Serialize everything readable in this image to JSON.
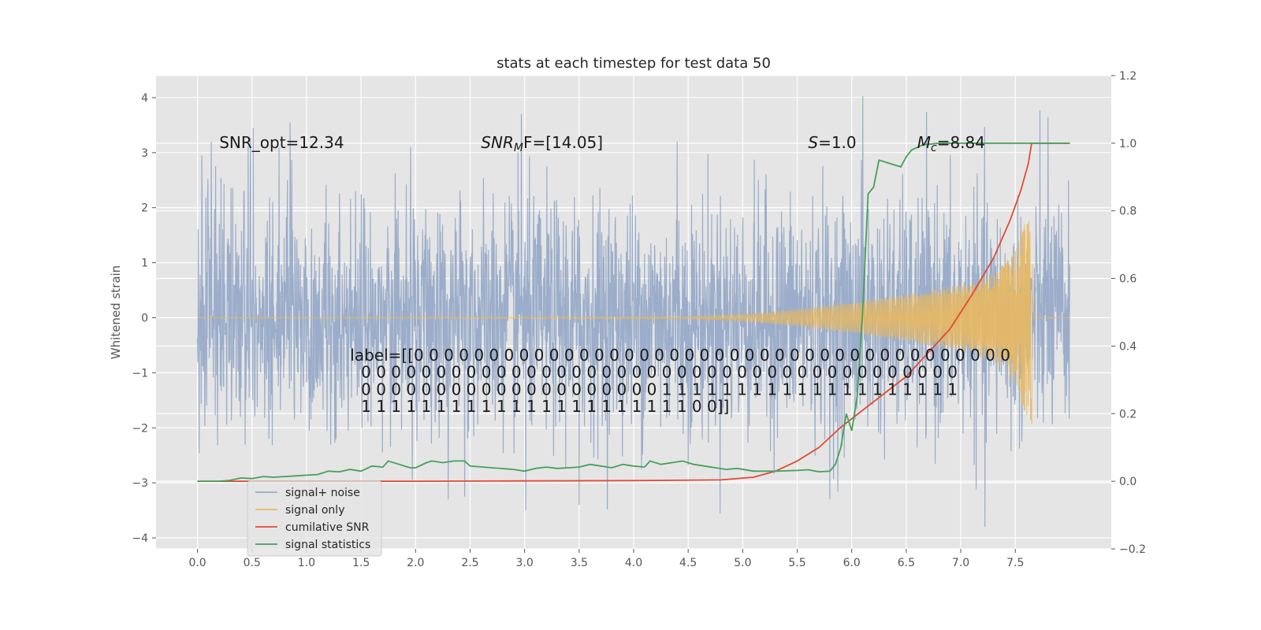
{
  "chart_data": {
    "type": "line",
    "title": "stats at each timestep for test data 50",
    "xlabel": "",
    "ylabel": "Whitened strain",
    "xlim": [
      -0.38,
      8.38
    ],
    "ylim": [
      -4.2,
      4.4
    ],
    "y2lim": [
      -0.2,
      1.2
    ],
    "xticks": [
      "0.0",
      "0.5",
      "1.0",
      "1.5",
      "2.0",
      "2.5",
      "3.0",
      "3.5",
      "4.0",
      "4.5",
      "5.0",
      "5.5",
      "6.0",
      "6.5",
      "7.0",
      "7.5"
    ],
    "yticks": [
      "4",
      "3",
      "2",
      "1",
      "0",
      "−1",
      "−2",
      "−3",
      "−4"
    ],
    "y2ticks": [
      "1.2",
      "1.0",
      "0.8",
      "0.6",
      "0.4",
      "0.2",
      "0.0",
      "−0.2"
    ],
    "grid": true,
    "legend_position": "lower-left",
    "annotations": {
      "snr_opt": "SNR_opt=12.34",
      "snr_mf_main": "SNR",
      "snr_mf_sub": "M",
      "snr_mf_rest": "F=[14.05]",
      "s_italic": "S",
      "s_rest": "=1.0",
      "mc_main": "M",
      "mc_sub": "c",
      "mc_rest": "=8.84",
      "label_lines": [
        "label=[[0 0 0 0 0 0 0 0 0 0 0 0 0 0 0 0 0 0 0 0 0 0 0 0 0 0 0 0 0 0 0 0 0 0 0 0 0 0 0 0",
        "0 0 0 0 0 0 0 0 0 0 0 0 0 0 0 0 0 0 0 0 0 0 0 0 0 0 0 0 0 0 0 0 0 0 0 0 0 0 0 0",
        "0 0 0 0 0 0 0 0 0 0 0 0 0 0 0 0 0 0 0 0 1 1 1 1 1 1 1 1 1 1 1 1 1 1 1 1 1 1 1 1",
        "1 1 1 1 1 1 1 1 1 1 1 1 1 1 1 1 1 1 1 1 1 1 0 0]]"
      ]
    },
    "series": [
      {
        "name": "signal+ noise",
        "color": "#97aac8",
        "x_range": [
          0.0,
          8.0
        ],
        "envelope_typical": [
          -1.6,
          1.6
        ],
        "spike_extremes": [
          {
            "x": 0.04,
            "y": 2.95
          },
          {
            "x": 0.51,
            "y": 3.45
          },
          {
            "x": 0.85,
            "y": 3.55
          },
          {
            "x": 2.3,
            "y": -3.3
          },
          {
            "x": 2.45,
            "y": -3.25
          },
          {
            "x": 2.97,
            "y": 3.7
          },
          {
            "x": 3.01,
            "y": -3.5
          },
          {
            "x": 3.5,
            "y": -3.4
          },
          {
            "x": 4.4,
            "y": 3.2
          },
          {
            "x": 5.8,
            "y": -3.3
          },
          {
            "x": 6.1,
            "y": 4.03
          },
          {
            "x": 7.22,
            "y": -3.8
          },
          {
            "x": 7.8,
            "y": 3.65
          }
        ]
      },
      {
        "name": "signal only",
        "color": "#e8b860",
        "x": [
          0.0,
          4.5,
          5.0,
          5.5,
          6.0,
          6.5,
          7.0,
          7.3,
          7.5,
          7.6,
          7.65,
          7.67,
          8.0
        ],
        "amplitude": [
          0.0,
          0.02,
          0.06,
          0.15,
          0.28,
          0.42,
          0.6,
          0.8,
          1.2,
          1.8,
          2.0,
          0.0,
          0.0
        ]
      },
      {
        "name": "cumilative SNR",
        "color": "#e24a33",
        "x": [
          0.0,
          1.0,
          2.0,
          3.0,
          4.0,
          4.8,
          5.1,
          5.3,
          5.5,
          5.7,
          5.9,
          6.1,
          6.3,
          6.5,
          6.7,
          6.9,
          7.1,
          7.3,
          7.45,
          7.55,
          7.62,
          7.65,
          7.66,
          8.0
        ],
        "values": [
          0.0,
          0.0,
          0.0,
          0.001,
          0.002,
          0.004,
          0.012,
          0.03,
          0.06,
          0.1,
          0.16,
          0.21,
          0.26,
          0.31,
          0.38,
          0.45,
          0.55,
          0.66,
          0.77,
          0.86,
          0.94,
          1.0,
          1.0,
          1.0
        ]
      },
      {
        "name": "signal statistics",
        "color": "#46a05b",
        "x": [
          0.0,
          0.2,
          0.3,
          0.4,
          0.5,
          0.6,
          0.7,
          0.8,
          0.9,
          1.0,
          1.1,
          1.2,
          1.3,
          1.4,
          1.5,
          1.6,
          1.7,
          1.75,
          1.85,
          1.95,
          2.0,
          2.1,
          2.15,
          2.25,
          2.35,
          2.45,
          2.5,
          2.7,
          2.9,
          3.0,
          3.1,
          3.2,
          3.3,
          3.4,
          3.5,
          3.6,
          3.7,
          3.8,
          3.9,
          4.0,
          4.1,
          4.15,
          4.25,
          4.35,
          4.45,
          4.55,
          4.65,
          4.75,
          4.85,
          4.95,
          5.1,
          5.3,
          5.5,
          5.6,
          5.7,
          5.8,
          5.85,
          5.9,
          5.95,
          6.0,
          6.05,
          6.1,
          6.15,
          6.2,
          6.25,
          6.35,
          6.45,
          6.5,
          6.55,
          6.65,
          6.8,
          7.0,
          7.3,
          7.7,
          8.0
        ],
        "values": [
          0.0,
          0.0,
          0.003,
          0.01,
          0.008,
          0.014,
          0.012,
          0.014,
          0.016,
          0.018,
          0.02,
          0.03,
          0.028,
          0.035,
          0.03,
          0.045,
          0.042,
          0.06,
          0.05,
          0.04,
          0.04,
          0.055,
          0.06,
          0.055,
          0.06,
          0.06,
          0.045,
          0.04,
          0.035,
          0.03,
          0.038,
          0.042,
          0.038,
          0.04,
          0.042,
          0.05,
          0.045,
          0.04,
          0.05,
          0.045,
          0.042,
          0.06,
          0.05,
          0.055,
          0.06,
          0.05,
          0.045,
          0.04,
          0.035,
          0.038,
          0.03,
          0.03,
          0.032,
          0.034,
          0.028,
          0.03,
          0.05,
          0.1,
          0.2,
          0.15,
          0.25,
          0.5,
          0.85,
          0.87,
          0.95,
          0.94,
          0.93,
          0.96,
          0.98,
          0.995,
          1.0,
          1.0,
          1.0,
          1.0,
          1.0
        ]
      }
    ]
  }
}
